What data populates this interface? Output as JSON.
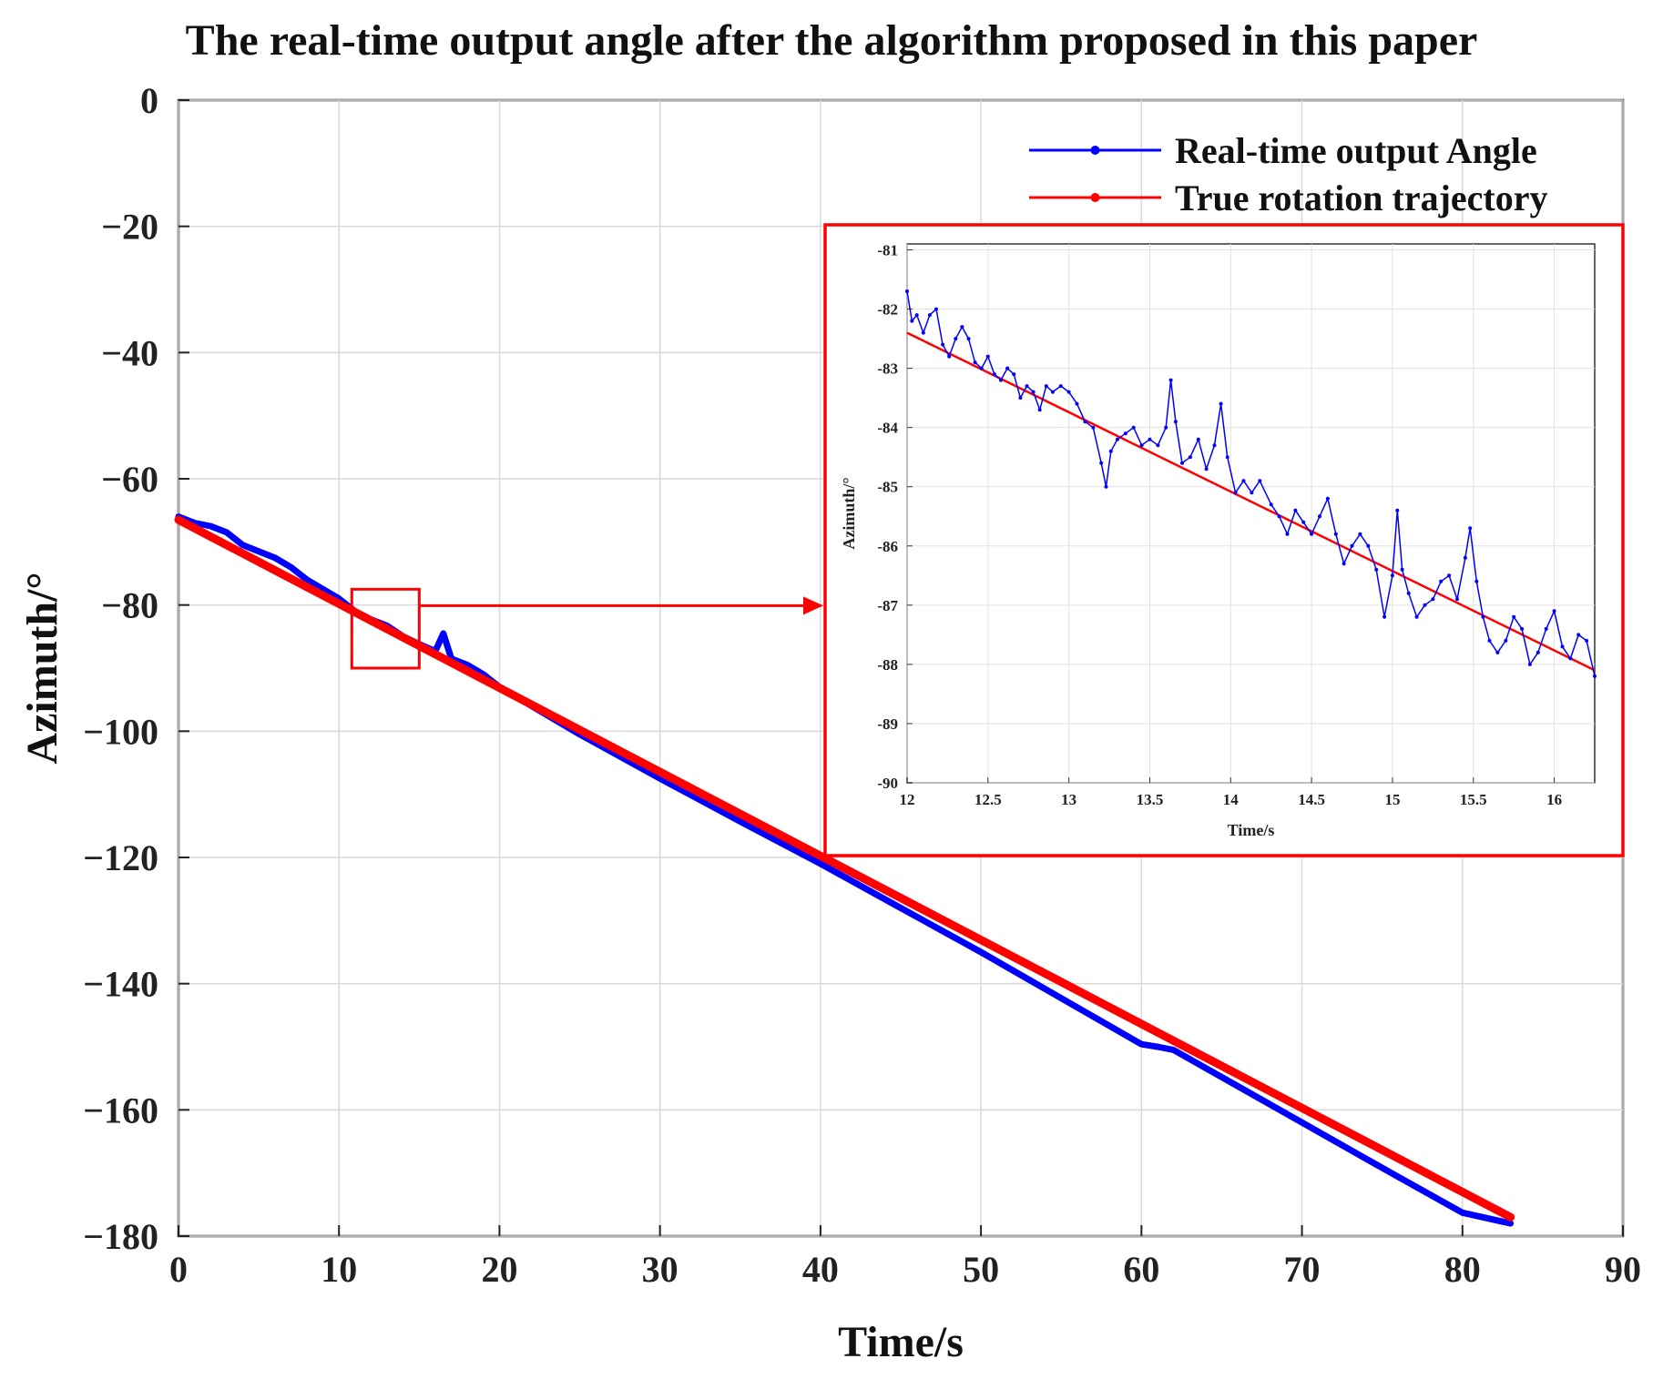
{
  "chart_data": [
    {
      "type": "line",
      "title": "The real-time output angle after the algorithm proposed in this paper",
      "xlabel": "Time/s",
      "ylabel": "Azimuth/°",
      "xlim": [
        0,
        90
      ],
      "ylim": [
        -180,
        0
      ],
      "xticks": [
        "0",
        "10",
        "20",
        "30",
        "40",
        "50",
        "60",
        "70",
        "80",
        "90"
      ],
      "yticks": [
        "0",
        "−20",
        "−40",
        "−60",
        "−80",
        "−100",
        "−120",
        "−140",
        "−160",
        "−180"
      ],
      "grid": true,
      "legend": "top-right",
      "series": [
        {
          "name": "Real-time output Angle",
          "color": "#0000ff",
          "x": [
            0,
            1,
            2,
            3,
            4,
            5,
            6,
            7,
            8,
            9,
            10,
            11,
            12,
            13,
            14,
            15,
            16,
            16.5,
            17,
            18,
            19,
            20,
            25,
            30,
            35,
            40,
            45,
            50,
            55,
            60,
            61,
            62,
            65,
            70,
            75,
            80,
            83
          ],
          "y": [
            -66,
            -67,
            -67.5,
            -68.5,
            -70.5,
            -71.5,
            -72.5,
            -74,
            -76,
            -77.5,
            -79,
            -81,
            -82.3,
            -83.3,
            -85,
            -86.2,
            -87.3,
            -84.5,
            -88.5,
            -89.5,
            -91,
            -93,
            -100.5,
            -107.5,
            -114.3,
            -121,
            -128,
            -135,
            -142.3,
            -149.6,
            -150,
            -150.5,
            -154.8,
            -162,
            -169.2,
            -176.3,
            -178
          ]
        },
        {
          "name": "True rotation trajectory",
          "color": "#ff0000",
          "x": [
            0,
            83
          ],
          "y": [
            -66.5,
            -177
          ]
        }
      ],
      "annotations": [
        "zoom box at x 11–15, y -77.5 to -90 linked by arrow to inset"
      ]
    },
    {
      "type": "line",
      "title": "",
      "xlabel": "Time/s",
      "ylabel": "Azimuth/°",
      "xlim": [
        12,
        16.25
      ],
      "ylim": [
        -90,
        -80.9
      ],
      "xticks": [
        "12",
        "12.5",
        "13",
        "13.5",
        "14",
        "14.5",
        "15",
        "15.5",
        "16"
      ],
      "yticks": [
        "-81",
        "-82",
        "-83",
        "-84",
        "-85",
        "-86",
        "-87",
        "-88",
        "-89",
        "-90"
      ],
      "grid": true,
      "series": [
        {
          "name": "Real-time output Angle",
          "color": "#0000ff",
          "x": [
            12,
            12.03,
            12.06,
            12.1,
            12.14,
            12.18,
            12.22,
            12.26,
            12.3,
            12.34,
            12.38,
            12.42,
            12.46,
            12.5,
            12.54,
            12.58,
            12.62,
            12.66,
            12.7,
            12.74,
            12.78,
            12.82,
            12.86,
            12.9,
            12.95,
            13,
            13.05,
            13.1,
            13.15,
            13.2,
            13.23,
            13.26,
            13.3,
            13.35,
            13.4,
            13.45,
            13.5,
            13.55,
            13.6,
            13.63,
            13.66,
            13.7,
            13.75,
            13.8,
            13.85,
            13.9,
            13.94,
            13.98,
            14.03,
            14.08,
            14.13,
            14.18,
            14.25,
            14.3,
            14.35,
            14.4,
            14.45,
            14.5,
            14.55,
            14.6,
            14.65,
            14.7,
            14.75,
            14.8,
            14.85,
            14.9,
            14.95,
            15,
            15.03,
            15.06,
            15.1,
            15.15,
            15.2,
            15.25,
            15.3,
            15.35,
            15.4,
            15.45,
            15.48,
            15.52,
            15.56,
            15.6,
            15.65,
            15.7,
            15.75,
            15.8,
            15.85,
            15.9,
            15.95,
            16,
            16.05,
            16.1,
            16.15,
            16.2,
            16.25
          ],
          "y": [
            -81.7,
            -82.2,
            -82.1,
            -82.4,
            -82.1,
            -82.0,
            -82.6,
            -82.8,
            -82.5,
            -82.3,
            -82.5,
            -82.9,
            -83.0,
            -82.8,
            -83.1,
            -83.2,
            -83.0,
            -83.1,
            -83.5,
            -83.3,
            -83.4,
            -83.7,
            -83.3,
            -83.4,
            -83.3,
            -83.4,
            -83.6,
            -83.9,
            -84.0,
            -84.6,
            -85.0,
            -84.4,
            -84.2,
            -84.1,
            -84.0,
            -84.3,
            -84.2,
            -84.3,
            -84.0,
            -83.2,
            -83.9,
            -84.6,
            -84.5,
            -84.2,
            -84.7,
            -84.3,
            -83.6,
            -84.5,
            -85.1,
            -84.9,
            -85.1,
            -84.9,
            -85.3,
            -85.5,
            -85.8,
            -85.4,
            -85.6,
            -85.8,
            -85.5,
            -85.2,
            -85.8,
            -86.3,
            -86.0,
            -85.8,
            -86.0,
            -86.4,
            -87.2,
            -86.5,
            -85.4,
            -86.4,
            -86.8,
            -87.2,
            -87.0,
            -86.9,
            -86.6,
            -86.5,
            -86.9,
            -86.2,
            -85.7,
            -86.6,
            -87.2,
            -87.6,
            -87.8,
            -87.6,
            -87.2,
            -87.4,
            -88.0,
            -87.8,
            -87.4,
            -87.1,
            -87.7,
            -87.9,
            -87.5,
            -87.6,
            -88.2
          ]
        },
        {
          "name": "True rotation trajectory",
          "color": "#ff0000",
          "x": [
            12,
            16.25
          ],
          "y": [
            -82.4,
            -88.1
          ]
        }
      ]
    }
  ]
}
